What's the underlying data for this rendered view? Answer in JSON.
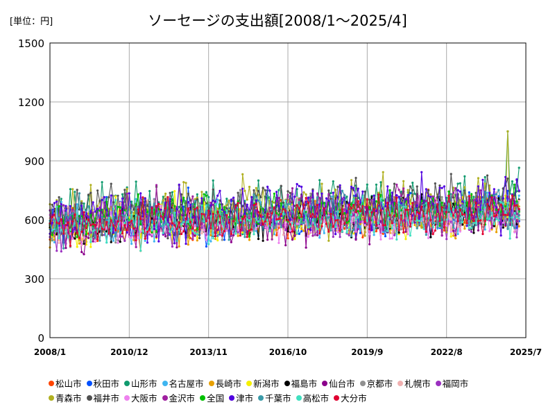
{
  "unit_label": "[単位：円]",
  "title": "ソーセージの支出額[2008/1～2025/4]",
  "chart_data": {
    "type": "line",
    "title": "ソーセージの支出額[2008/1～2025/4]",
    "unit": "[単位：円]",
    "period": {
      "start": "2008-01",
      "end": "2025-04"
    },
    "ylim": [
      0,
      1500
    ],
    "yticks": [
      0,
      300,
      600,
      900,
      1200,
      1500
    ],
    "xlim": [
      "2008-01",
      "2025-07"
    ],
    "xticks": [
      "2008/1",
      "2010/12",
      "2013/11",
      "2016/10",
      "2019/9",
      "2022/8",
      "2025/7"
    ],
    "grid": true,
    "legend_position": "bottom",
    "series": [
      {
        "name": "松山市",
        "color": "#ff4500",
        "seed": 11,
        "base": 560,
        "trend": 70,
        "amp": 60,
        "spike": 0
      },
      {
        "name": "秋田市",
        "color": "#0050ff",
        "seed": 23,
        "base": 590,
        "trend": 60,
        "amp": 70,
        "spike": 0
      },
      {
        "name": "山形市",
        "color": "#109a6e",
        "seed": 37,
        "base": 640,
        "trend": 60,
        "amp": 80,
        "spike": 1140
      },
      {
        "name": "名古屋市",
        "color": "#3fb5f0",
        "seed": 41,
        "base": 580,
        "trend": 60,
        "amp": 65,
        "spike": 0
      },
      {
        "name": "長崎市",
        "color": "#e8a000",
        "seed": 53,
        "base": 560,
        "trend": 70,
        "amp": 60,
        "spike": 0
      },
      {
        "name": "新潟市",
        "color": "#f5f000",
        "seed": 67,
        "base": 580,
        "trend": 60,
        "amp": 70,
        "spike": 0
      },
      {
        "name": "福島市",
        "color": "#000000",
        "seed": 71,
        "base": 570,
        "trend": 70,
        "amp": 60,
        "spike": 0
      },
      {
        "name": "仙台市",
        "color": "#8b008b",
        "seed": 83,
        "base": 560,
        "trend": 70,
        "amp": 65,
        "spike": 0
      },
      {
        "name": "京都市",
        "color": "#909090",
        "seed": 97,
        "base": 600,
        "trend": 40,
        "amp": 60,
        "spike": 0
      },
      {
        "name": "札幌市",
        "color": "#f0b0b0",
        "seed": 101,
        "base": 590,
        "trend": 60,
        "amp": 60,
        "spike": 0
      },
      {
        "name": "福岡市",
        "color": "#9b30c0",
        "seed": 113,
        "base": 560,
        "trend": 60,
        "amp": 60,
        "spike": 0
      },
      {
        "name": "青森市",
        "color": "#b0b020",
        "seed": 127,
        "base": 630,
        "trend": 60,
        "amp": 85,
        "spike": 1180
      },
      {
        "name": "福井市",
        "color": "#505050",
        "seed": 131,
        "base": 640,
        "trend": 60,
        "amp": 80,
        "spike": 0
      },
      {
        "name": "大阪市",
        "color": "#ee82ee",
        "seed": 139,
        "base": 560,
        "trend": 60,
        "amp": 60,
        "spike": 0
      },
      {
        "name": "金沢市",
        "color": "#a020a0",
        "seed": 149,
        "base": 600,
        "trend": 60,
        "amp": 70,
        "spike": 0
      },
      {
        "name": "全国",
        "color": "#00c000",
        "seed": 157,
        "base": 610,
        "trend": 60,
        "amp": 55,
        "spike": 0
      },
      {
        "name": "津市",
        "color": "#5000e0",
        "seed": 163,
        "base": 620,
        "trend": 70,
        "amp": 80,
        "spike": 0
      },
      {
        "name": "千葉市",
        "color": "#3a9aa8",
        "seed": 173,
        "base": 590,
        "trend": 60,
        "amp": 65,
        "spike": 0
      },
      {
        "name": "高松市",
        "color": "#40e0c0",
        "seed": 181,
        "base": 560,
        "trend": 70,
        "amp": 60,
        "spike": 0
      },
      {
        "name": "大分市",
        "color": "#e00030",
        "seed": 191,
        "base": 580,
        "trend": 70,
        "amp": 60,
        "spike": 0
      }
    ]
  }
}
